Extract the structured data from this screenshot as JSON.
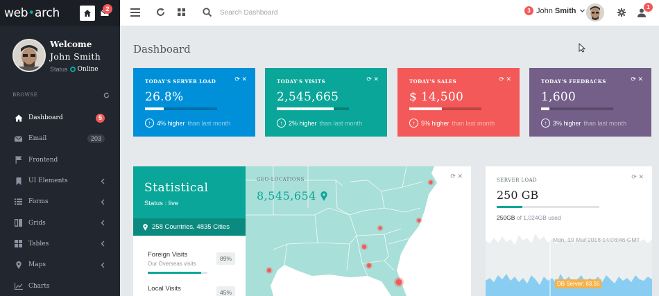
{
  "brand": {
    "prefix": "web",
    "dot": "•",
    "suffix": "arch"
  },
  "header": {
    "mail_badge": "2",
    "search_placeholder": "Search Dashboard",
    "user_badge": "3",
    "user_first": "John",
    "user_last": "Smith",
    "alert_badge": "1"
  },
  "profile": {
    "welcome": "Welcome",
    "name": "John Smith",
    "status_label": "Status",
    "status_value": "Online"
  },
  "sidebar": {
    "section": "BROWSE",
    "items": [
      {
        "label": "Dashboard",
        "icon": "home-icon",
        "badge": "5",
        "active": true
      },
      {
        "label": "Email",
        "icon": "envelope-icon",
        "count": "203"
      },
      {
        "label": "Frontend",
        "icon": "flag-icon"
      },
      {
        "label": "UI Elements",
        "icon": "bookmark-icon",
        "chevron": true
      },
      {
        "label": "Forms",
        "icon": "list-icon",
        "chevron": true
      },
      {
        "label": "Grids",
        "icon": "columns-icon",
        "chevron": true
      },
      {
        "label": "Tables",
        "icon": "table-icon",
        "chevron": true
      },
      {
        "label": "Maps",
        "icon": "map-marker-icon",
        "chevron": true
      },
      {
        "label": "Charts",
        "icon": "line-chart-icon"
      }
    ]
  },
  "page_title": "Dashboard",
  "tiles": [
    {
      "title": "TODAY'S SERVER LOAD",
      "value": "26.8%",
      "progress": 0.26,
      "change": "4% higher",
      "suffix": "than last month",
      "color": "#0090d9"
    },
    {
      "title": "TODAY'S VISITS",
      "value": "2,545,665",
      "progress": 0.79,
      "change": "2% higher",
      "suffix": "than last month",
      "color": "#0aa699"
    },
    {
      "title": "TODAY'S SALES",
      "value": "$ 14,500",
      "progress": 0.45,
      "change": "5% higher",
      "suffix": "than last month",
      "color": "#f35958"
    },
    {
      "title": "TODAY'S FEEDBACKS",
      "value": "1,600",
      "progress": 0.12,
      "change": "3% higher",
      "suffix": "than last month",
      "color": "#735f87"
    }
  ],
  "statistical": {
    "title": "Statistical",
    "status": "Status : live",
    "countries": "258 Countries, 4835 Cities",
    "items": [
      {
        "name": "Foreign Visits",
        "desc": "Our Overseas visits",
        "pct": "89%",
        "progress": 0.89
      },
      {
        "name": "Local Visits",
        "desc": "",
        "pct": "45%",
        "progress": 0.45
      }
    ]
  },
  "geo": {
    "title": "GEO-LOCATIONS",
    "value": "8,545,654"
  },
  "server": {
    "title": "SERVER LOAD",
    "value": "250 GB",
    "progress": 0.25,
    "used": "250GB",
    "of": "of 1,024GB",
    "used_word": "used",
    "tooltip_date": "Mon, 19 Mar 2018 14:08:46 GMT",
    "tooltip_series": "DB Server: 83.55"
  },
  "colors": {
    "accent": "#0aa699",
    "sidebar": "#22262e",
    "danger": "#f35958"
  }
}
